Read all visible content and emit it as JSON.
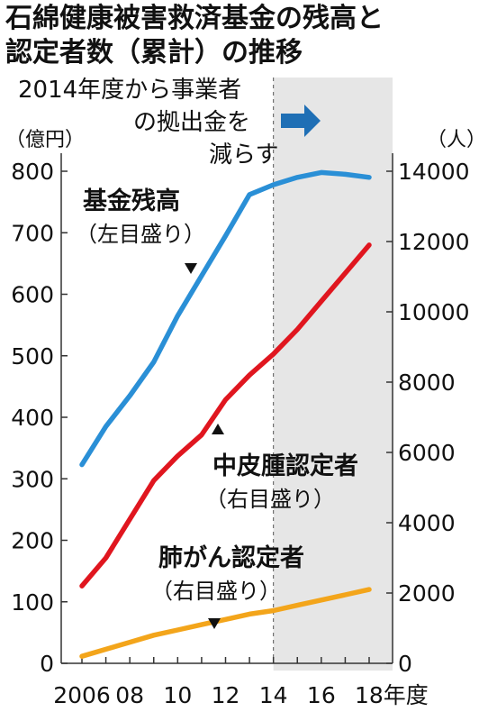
{
  "title_line1": "石綿健康被害救済基金の残高と",
  "title_line2": "認定者数（累計）の推移",
  "note_lines": [
    "2014年度から事業者",
    "の拠出金を",
    "減らす"
  ],
  "colors": {
    "fund": "#2a8fd6",
    "mesothelioma": "#e0161f",
    "lung_cancer": "#f3a51b",
    "shade": "#e6e6e6",
    "arrow": "#1f6fb5"
  },
  "chart_data": {
    "type": "line",
    "x": [
      2006,
      2007,
      2008,
      2009,
      2010,
      2011,
      2012,
      2013,
      2014,
      2015,
      2016,
      2017,
      2018
    ],
    "x_tick_labels": [
      "2006",
      "08",
      "10",
      "12",
      "14",
      "16",
      "18年度"
    ],
    "x_tick_values": [
      2006,
      2008,
      2010,
      2012,
      2014,
      2016,
      2018
    ],
    "y_left": {
      "unit": "（億円）",
      "range": [
        0,
        800
      ],
      "ticks": [
        0,
        100,
        200,
        300,
        400,
        500,
        600,
        700,
        800
      ]
    },
    "y_right": {
      "unit": "（人）",
      "range": [
        0,
        14000
      ],
      "ticks": [
        0,
        2000,
        4000,
        6000,
        8000,
        10000,
        12000,
        14000
      ]
    },
    "shaded_from_x": 2014,
    "series": [
      {
        "name": "基金残高",
        "sublabel": "（左目盛り）",
        "axis": "left",
        "values": [
          323,
          385,
          435,
          490,
          565,
          630,
          695,
          762,
          778,
          790,
          798,
          795,
          790
        ]
      },
      {
        "name": "中皮腫認定者",
        "sublabel": "（右目盛り）",
        "axis": "right",
        "values": [
          2200,
          3000,
          4100,
          5200,
          5900,
          6500,
          7500,
          8200,
          8800,
          9500,
          10300,
          11100,
          11900
        ]
      },
      {
        "name": "肺がん認定者",
        "sublabel": "（右目盛り）",
        "axis": "right",
        "values": [
          200,
          400,
          600,
          800,
          950,
          1100,
          1250,
          1400,
          1500,
          1650,
          1800,
          1950,
          2100
        ]
      }
    ]
  }
}
